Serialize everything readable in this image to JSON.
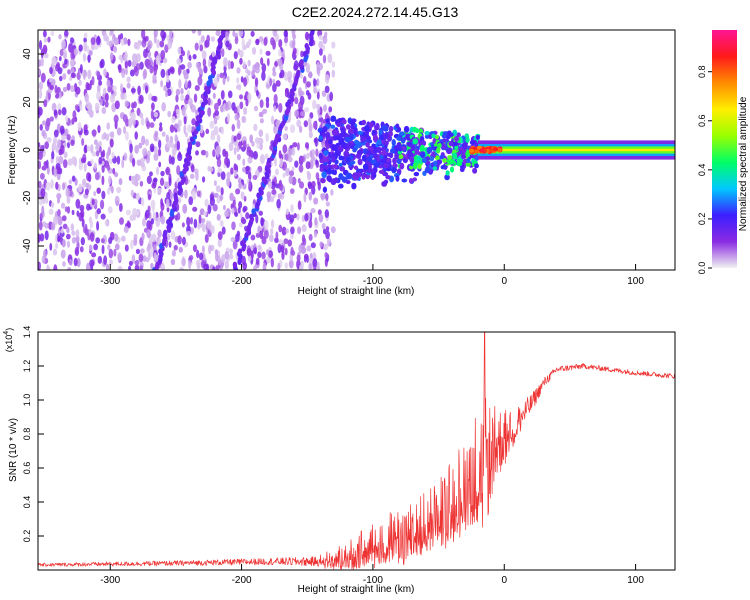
{
  "title": "C2E2.2024.272.14.45.G13",
  "chart_data": [
    {
      "type": "heatmap",
      "title": "C2E2.2024.272.14.45.G13",
      "xlabel": "Height of straight line (km)",
      "ylabel": "Frequency (Hz)",
      "xlim": [
        -355,
        130
      ],
      "ylim": [
        -50,
        50
      ],
      "xticks": [
        -300,
        -200,
        -100,
        0,
        100
      ],
      "yticks": [
        -40,
        -20,
        0,
        20,
        40
      ],
      "colorbar": {
        "label": "Normalized spectral amplitude",
        "range": [
          0.0,
          0.97
        ],
        "ticks": [
          0.0,
          0.2,
          0.4,
          0.6,
          0.8
        ],
        "tick_labels": [
          "0.0",
          "0.2",
          "0.4",
          "0.6",
          "0.8"
        ],
        "colors": [
          "#f2f2f2",
          "#8a2be2",
          "#3b1fff",
          "#00c8ff",
          "#00ff66",
          "#9aff00",
          "#ffee00",
          "#ff8c00",
          "#ff1a1a",
          "#ff1493"
        ]
      },
      "regions": [
        {
          "name": "noise",
          "x_range": [
            -355,
            -130
          ],
          "freq_range": [
            -50,
            50
          ],
          "amplitude": 0.05
        },
        {
          "name": "transition",
          "x_range": [
            -140,
            -20
          ],
          "freq_range": [
            -10,
            12
          ],
          "amplitude": 0.3
        },
        {
          "name": "carrier",
          "x_range": [
            -20,
            130
          ],
          "freq_center": 0,
          "amplitude": 0.5,
          "peak_amplitude": 0.9
        }
      ],
      "streaks": [
        {
          "x_at_freq_-50": -265,
          "x_at_freq_50": -213
        },
        {
          "x_at_freq_-50": -205,
          "x_at_freq_50": -145
        }
      ]
    },
    {
      "type": "line",
      "xlabel": "Height of straight line (km)",
      "ylabel": "SNR (10 * v/v)",
      "y_multiplier": "(x10^4)",
      "y_multiplier_base": "(x10",
      "y_multiplier_exp": "4",
      "y_multiplier_close": ")",
      "xlim": [
        -355,
        130
      ],
      "ylim": [
        0,
        1.4
      ],
      "xticks": [
        -300,
        -200,
        -100,
        0,
        100
      ],
      "yticks": [
        0.2,
        0.4,
        0.6,
        0.8,
        1.0,
        1.2,
        1.4
      ],
      "ytick_labels": [
        "0.2",
        "0.4",
        "0.6",
        "0.8",
        "1.0",
        "1.2",
        "1.4"
      ],
      "color": "#ee3333",
      "series": [
        {
          "name": "SNR",
          "envelope": {
            "x": [
              -355,
              -250,
              -180,
              -140,
              -120,
              -100,
              -80,
              -60,
              -45,
              -35,
              -25,
              -15,
              -10,
              0,
              10,
              20,
              30,
              40,
              60,
              80,
              100,
              130
            ],
            "mean": [
              0.03,
              0.04,
              0.05,
              0.05,
              0.08,
              0.15,
              0.2,
              0.26,
              0.35,
              0.45,
              0.55,
              0.6,
              0.7,
              0.78,
              0.87,
              0.97,
              1.1,
              1.18,
              1.2,
              1.18,
              1.16,
              1.14
            ],
            "spread": [
              0.01,
              0.015,
              0.02,
              0.03,
              0.06,
              0.1,
              0.13,
              0.15,
              0.17,
              0.2,
              0.25,
              0.3,
              0.2,
              0.12,
              0.1,
              0.06,
              0.03,
              0.02,
              0.015,
              0.015,
              0.015,
              0.015
            ]
          },
          "peak": {
            "x": -15,
            "y": 1.4
          }
        }
      ]
    }
  ]
}
